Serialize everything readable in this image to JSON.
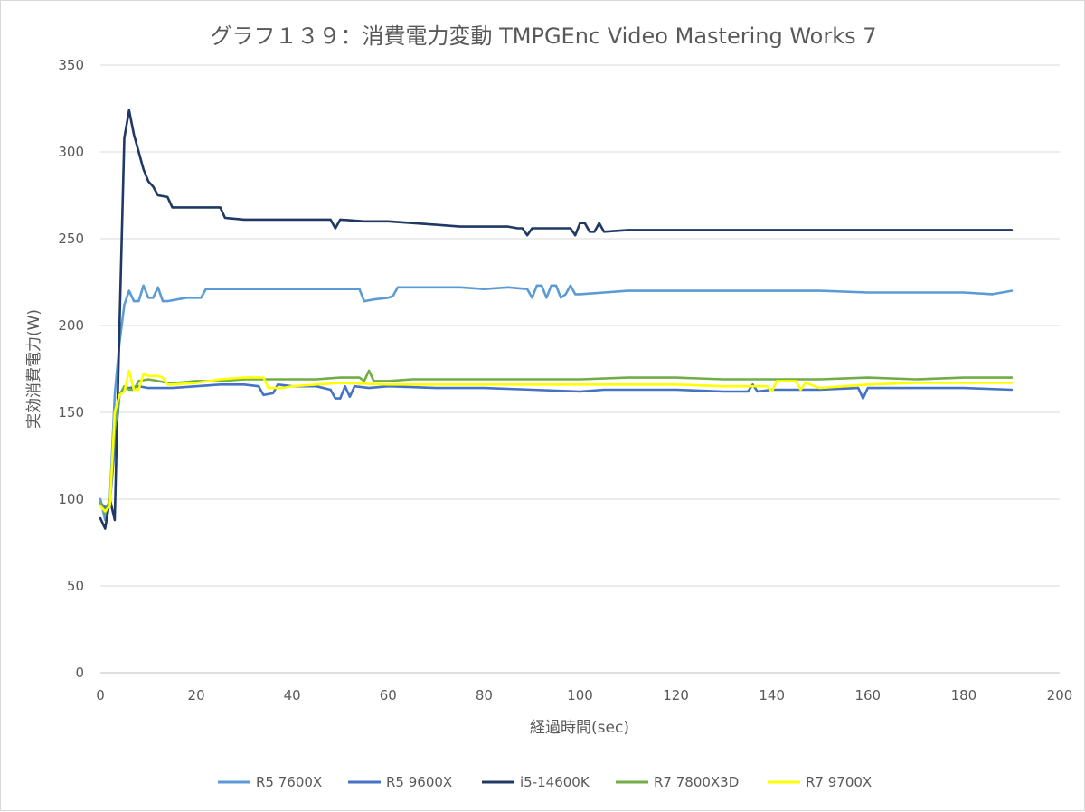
{
  "chart_data": {
    "type": "line",
    "title": "グラフ１３９：消費電力変動 TMPGEnc Video Mastering Works 7",
    "xlabel": "経過時間(sec)",
    "ylabel": "実効消費電力(W)",
    "xlim": [
      0,
      200
    ],
    "ylim": [
      0,
      350
    ],
    "xticks": [
      "0",
      "20",
      "40",
      "60",
      "80",
      "100",
      "120",
      "140",
      "160",
      "180",
      "200"
    ],
    "yticks": [
      "0",
      "50",
      "100",
      "150",
      "200",
      "250",
      "300",
      "350"
    ],
    "grid": "horizontal",
    "legend_position": "bottom",
    "series": [
      {
        "name": "R5 7600X",
        "color": "#5b9bd5",
        "points": [
          [
            0,
            100
          ],
          [
            1,
            88
          ],
          [
            2,
            100
          ],
          [
            3,
            160
          ],
          [
            4,
            190
          ],
          [
            5,
            212
          ],
          [
            6,
            220
          ],
          [
            7,
            214
          ],
          [
            8,
            214
          ],
          [
            9,
            223
          ],
          [
            10,
            216
          ],
          [
            11,
            216
          ],
          [
            12,
            222
          ],
          [
            13,
            214
          ],
          [
            14,
            214
          ],
          [
            16,
            215
          ],
          [
            18,
            216
          ],
          [
            20,
            216
          ],
          [
            21,
            216
          ],
          [
            22,
            221
          ],
          [
            25,
            221
          ],
          [
            30,
            221
          ],
          [
            35,
            221
          ],
          [
            40,
            221
          ],
          [
            45,
            221
          ],
          [
            50,
            221
          ],
          [
            54,
            221
          ],
          [
            55,
            214
          ],
          [
            57,
            215
          ],
          [
            60,
            216
          ],
          [
            61,
            217
          ],
          [
            62,
            222
          ],
          [
            65,
            222
          ],
          [
            70,
            222
          ],
          [
            75,
            222
          ],
          [
            80,
            221
          ],
          [
            85,
            222
          ],
          [
            89,
            221
          ],
          [
            90,
            216
          ],
          [
            91,
            223
          ],
          [
            92,
            223
          ],
          [
            93,
            216
          ],
          [
            94,
            223
          ],
          [
            95,
            223
          ],
          [
            96,
            216
          ],
          [
            97,
            218
          ],
          [
            98,
            223
          ],
          [
            99,
            218
          ],
          [
            100,
            218
          ],
          [
            105,
            219
          ],
          [
            110,
            220
          ],
          [
            120,
            220
          ],
          [
            130,
            220
          ],
          [
            140,
            220
          ],
          [
            150,
            220
          ],
          [
            160,
            219
          ],
          [
            170,
            219
          ],
          [
            180,
            219
          ],
          [
            186,
            218
          ],
          [
            188,
            219
          ],
          [
            190,
            220
          ]
        ]
      },
      {
        "name": "R5 9600X",
        "color": "#4472c4",
        "points": [
          [
            0,
            98
          ],
          [
            1,
            95
          ],
          [
            2,
            98
          ],
          [
            3,
            130
          ],
          [
            4,
            160
          ],
          [
            5,
            164
          ],
          [
            6,
            164
          ],
          [
            8,
            165
          ],
          [
            10,
            164
          ],
          [
            15,
            164
          ],
          [
            20,
            165
          ],
          [
            25,
            166
          ],
          [
            30,
            166
          ],
          [
            33,
            165
          ],
          [
            34,
            160
          ],
          [
            36,
            161
          ],
          [
            37,
            166
          ],
          [
            40,
            165
          ],
          [
            45,
            165
          ],
          [
            48,
            163
          ],
          [
            49,
            158
          ],
          [
            50,
            158
          ],
          [
            51,
            165
          ],
          [
            52,
            159
          ],
          [
            53,
            165
          ],
          [
            56,
            164
          ],
          [
            60,
            165
          ],
          [
            70,
            164
          ],
          [
            80,
            164
          ],
          [
            90,
            163
          ],
          [
            100,
            162
          ],
          [
            105,
            163
          ],
          [
            110,
            163
          ],
          [
            120,
            163
          ],
          [
            130,
            162
          ],
          [
            135,
            162
          ],
          [
            136,
            166
          ],
          [
            137,
            162
          ],
          [
            140,
            163
          ],
          [
            150,
            163
          ],
          [
            158,
            164
          ],
          [
            159,
            158
          ],
          [
            160,
            164
          ],
          [
            165,
            164
          ],
          [
            170,
            164
          ],
          [
            180,
            164
          ],
          [
            190,
            163
          ]
        ]
      },
      {
        "name": "i5-14600K",
        "color": "#1f3864",
        "points": [
          [
            0,
            89
          ],
          [
            1,
            83
          ],
          [
            2,
            100
          ],
          [
            3,
            88
          ],
          [
            4,
            200
          ],
          [
            5,
            308
          ],
          [
            6,
            324
          ],
          [
            7,
            310
          ],
          [
            8,
            300
          ],
          [
            9,
            290
          ],
          [
            10,
            283
          ],
          [
            11,
            280
          ],
          [
            12,
            275
          ],
          [
            14,
            274
          ],
          [
            15,
            268
          ],
          [
            18,
            268
          ],
          [
            20,
            268
          ],
          [
            25,
            268
          ],
          [
            26,
            262
          ],
          [
            30,
            261
          ],
          [
            35,
            261
          ],
          [
            40,
            261
          ],
          [
            45,
            261
          ],
          [
            48,
            261
          ],
          [
            49,
            256
          ],
          [
            50,
            261
          ],
          [
            55,
            260
          ],
          [
            60,
            260
          ],
          [
            65,
            259
          ],
          [
            70,
            258
          ],
          [
            75,
            257
          ],
          [
            80,
            257
          ],
          [
            85,
            257
          ],
          [
            87,
            256
          ],
          [
            88,
            256
          ],
          [
            89,
            252
          ],
          [
            90,
            256
          ],
          [
            95,
            256
          ],
          [
            98,
            256
          ],
          [
            99,
            252
          ],
          [
            100,
            259
          ],
          [
            101,
            259
          ],
          [
            102,
            254
          ],
          [
            103,
            254
          ],
          [
            104,
            259
          ],
          [
            105,
            254
          ],
          [
            110,
            255
          ],
          [
            120,
            255
          ],
          [
            130,
            255
          ],
          [
            140,
            255
          ],
          [
            150,
            255
          ],
          [
            160,
            255
          ],
          [
            170,
            255
          ],
          [
            180,
            255
          ],
          [
            190,
            255
          ]
        ]
      },
      {
        "name": "R7 7800X3D",
        "color": "#70ad47",
        "points": [
          [
            0,
            98
          ],
          [
            1,
            92
          ],
          [
            2,
            100
          ],
          [
            3,
            140
          ],
          [
            4,
            160
          ],
          [
            5,
            165
          ],
          [
            6,
            163
          ],
          [
            7,
            163
          ],
          [
            8,
            168
          ],
          [
            10,
            169
          ],
          [
            12,
            168
          ],
          [
            14,
            167
          ],
          [
            16,
            167
          ],
          [
            20,
            168
          ],
          [
            25,
            168
          ],
          [
            30,
            169
          ],
          [
            35,
            169
          ],
          [
            40,
            169
          ],
          [
            45,
            169
          ],
          [
            50,
            170
          ],
          [
            54,
            170
          ],
          [
            55,
            168
          ],
          [
            56,
            174
          ],
          [
            57,
            168
          ],
          [
            60,
            168
          ],
          [
            65,
            169
          ],
          [
            70,
            169
          ],
          [
            80,
            169
          ],
          [
            90,
            169
          ],
          [
            100,
            169
          ],
          [
            110,
            170
          ],
          [
            120,
            170
          ],
          [
            130,
            169
          ],
          [
            140,
            169
          ],
          [
            150,
            169
          ],
          [
            160,
            170
          ],
          [
            170,
            169
          ],
          [
            180,
            170
          ],
          [
            190,
            170
          ]
        ]
      },
      {
        "name": "R7 9700X",
        "color": "#ffff00",
        "points": [
          [
            0,
            96
          ],
          [
            1,
            93
          ],
          [
            2,
            96
          ],
          [
            3,
            150
          ],
          [
            4,
            160
          ],
          [
            5,
            162
          ],
          [
            6,
            174
          ],
          [
            7,
            163
          ],
          [
            8,
            163
          ],
          [
            9,
            172
          ],
          [
            10,
            171
          ],
          [
            12,
            171
          ],
          [
            13,
            170
          ],
          [
            14,
            166
          ],
          [
            15,
            166
          ],
          [
            20,
            167
          ],
          [
            25,
            169
          ],
          [
            30,
            170
          ],
          [
            34,
            170
          ],
          [
            35,
            164
          ],
          [
            38,
            164
          ],
          [
            40,
            165
          ],
          [
            50,
            167
          ],
          [
            60,
            166
          ],
          [
            70,
            166
          ],
          [
            80,
            166
          ],
          [
            90,
            166
          ],
          [
            100,
            166
          ],
          [
            110,
            166
          ],
          [
            120,
            166
          ],
          [
            130,
            165
          ],
          [
            139,
            165
          ],
          [
            140,
            162
          ],
          [
            141,
            168
          ],
          [
            145,
            168
          ],
          [
            146,
            163
          ],
          [
            147,
            167
          ],
          [
            150,
            164
          ],
          [
            160,
            166
          ],
          [
            170,
            167
          ],
          [
            180,
            167
          ],
          [
            190,
            167
          ]
        ]
      }
    ]
  }
}
